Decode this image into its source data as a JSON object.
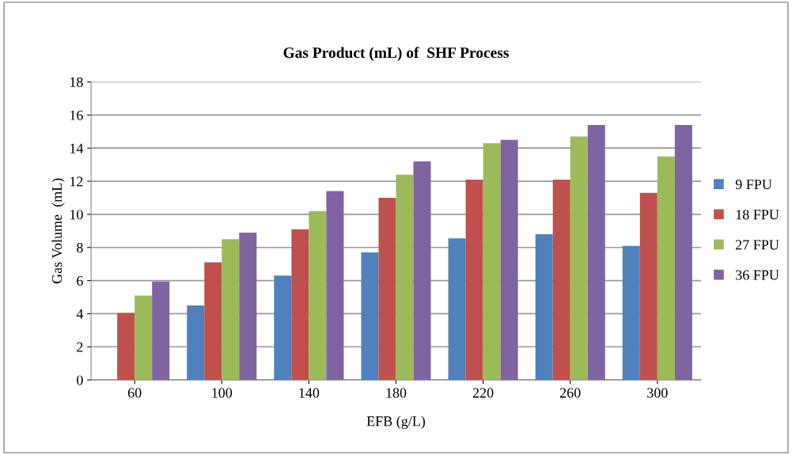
{
  "chart_data": {
    "type": "bar",
    "title": "Gas Product (mL) of  SHF Process",
    "xlabel": "EFB (g/L)",
    "ylabel": "Gas Volume  (mL)",
    "categories": [
      "60",
      "100",
      "140",
      "180",
      "220",
      "260",
      "300"
    ],
    "series": [
      {
        "name": "9 FPU",
        "color": "#4f81bd",
        "values": [
          0,
          4.5,
          6.3,
          7.7,
          8.55,
          8.8,
          8.1
        ]
      },
      {
        "name": "18 FPU",
        "color": "#c0504d",
        "values": [
          4.05,
          7.1,
          9.1,
          11.0,
          12.1,
          12.1,
          11.3
        ]
      },
      {
        "name": "27 FPU",
        "color": "#9bbb59",
        "values": [
          5.1,
          8.5,
          10.2,
          12.4,
          14.3,
          14.7,
          13.5
        ]
      },
      {
        "name": "36 FPU",
        "color": "#8064a2",
        "values": [
          5.95,
          8.9,
          11.4,
          13.2,
          14.5,
          15.4,
          15.4
        ]
      }
    ],
    "ylim": [
      0,
      18
    ],
    "yticks": [
      0,
      2,
      4,
      6,
      8,
      10,
      12,
      14,
      16,
      18
    ],
    "grid": "y",
    "legend": "right"
  }
}
